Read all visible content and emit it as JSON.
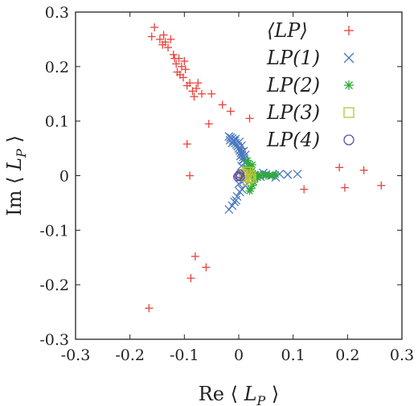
{
  "chart_data": {
    "type": "scatter",
    "xlabel": {
      "prefix": "Re",
      "sym": "L",
      "sub": "P"
    },
    "ylabel": {
      "prefix": "Im",
      "sym": "L",
      "sub": "P"
    },
    "xlim": [
      -0.3,
      0.3
    ],
    "ylim": [
      -0.3,
      0.3
    ],
    "xticks": [
      "-0.3",
      "-0.2",
      "-0.1",
      "0",
      "0.1",
      "0.2",
      "0.3"
    ],
    "yticks": [
      "0.3",
      "0.2",
      "0.1",
      "0",
      "-0.1",
      "-0.2",
      "-0.3"
    ],
    "legend_position": "top-right",
    "series": [
      {
        "name": "⟨LP⟩",
        "marker": "plus",
        "color": "#e8423a",
        "points": [
          [
            -0.16,
            0.255
          ],
          [
            -0.155,
            0.272
          ],
          [
            -0.145,
            0.25
          ],
          [
            -0.14,
            0.24
          ],
          [
            -0.138,
            0.258
          ],
          [
            -0.135,
            0.245
          ],
          [
            -0.13,
            0.235
          ],
          [
            -0.125,
            0.25
          ],
          [
            -0.12,
            0.222
          ],
          [
            -0.118,
            0.215
          ],
          [
            -0.115,
            0.205
          ],
          [
            -0.113,
            0.19
          ],
          [
            -0.11,
            0.215
          ],
          [
            -0.108,
            0.185
          ],
          [
            -0.105,
            0.2
          ],
          [
            -0.102,
            0.18
          ],
          [
            -0.1,
            0.21
          ],
          [
            -0.098,
            0.195
          ],
          [
            -0.095,
            0.165
          ],
          [
            -0.09,
            0.17
          ],
          [
            -0.085,
            0.155
          ],
          [
            -0.082,
            0.145
          ],
          [
            -0.078,
            0.16
          ],
          [
            -0.075,
            0.17
          ],
          [
            -0.068,
            0.15
          ],
          [
            -0.05,
            0.15
          ],
          [
            -0.03,
            0.13
          ],
          [
            -0.015,
            0.118
          ],
          [
            0.02,
            0.105
          ],
          [
            -0.055,
            0.095
          ],
          [
            -0.095,
            0.058
          ],
          [
            -0.09,
            0.0
          ],
          [
            -0.08,
            -0.148
          ],
          [
            -0.06,
            -0.168
          ],
          [
            -0.088,
            -0.188
          ],
          [
            -0.165,
            -0.243
          ],
          [
            0.12,
            -0.025
          ],
          [
            0.185,
            0.015
          ],
          [
            0.195,
            -0.022
          ],
          [
            0.23,
            0.01
          ],
          [
            0.262,
            -0.018
          ],
          [
            0.005,
            0.05
          ]
        ]
      },
      {
        "name": "LP(1)",
        "marker": "x",
        "color": "#4a78c0",
        "points": [
          [
            -0.018,
            0.072
          ],
          [
            -0.015,
            0.07
          ],
          [
            -0.012,
            0.068
          ],
          [
            -0.01,
            0.065
          ],
          [
            -0.008,
            0.063
          ],
          [
            -0.006,
            0.06
          ],
          [
            -0.004,
            0.057
          ],
          [
            -0.002,
            0.054
          ],
          [
            0.0,
            0.05
          ],
          [
            0.002,
            0.046
          ],
          [
            0.004,
            0.042
          ],
          [
            0.006,
            0.038
          ],
          [
            0.008,
            0.034
          ],
          [
            0.01,
            0.03
          ],
          [
            0.012,
            0.025
          ],
          [
            -0.012,
            0.06
          ],
          [
            -0.006,
            0.067
          ],
          [
            0.001,
            0.062
          ],
          [
            0.005,
            0.055
          ],
          [
            0.009,
            0.045
          ],
          [
            0.012,
            0.038
          ],
          [
            -0.016,
            0.065
          ],
          [
            0.003,
            0.036
          ],
          [
            0.007,
            0.028
          ],
          [
            0.03,
            0.0
          ],
          [
            0.04,
            -0.002
          ],
          [
            0.05,
            0.002
          ],
          [
            0.06,
            0.0
          ],
          [
            0.075,
            0.003
          ],
          [
            0.09,
            0.002
          ],
          [
            0.108,
            0.003
          ],
          [
            0.045,
            0.005
          ],
          [
            0.068,
            -0.003
          ],
          [
            0.012,
            -0.018
          ],
          [
            0.006,
            -0.025
          ],
          [
            0.002,
            -0.03
          ],
          [
            -0.003,
            -0.038
          ],
          [
            -0.008,
            -0.048
          ],
          [
            -0.012,
            -0.055
          ],
          [
            -0.018,
            -0.062
          ],
          [
            0.0,
            -0.015
          ],
          [
            -0.005,
            -0.045
          ],
          [
            0.005,
            0.018
          ],
          [
            0.015,
            0.012
          ],
          [
            0.02,
            0.005
          ],
          [
            0.01,
            -0.008
          ]
        ]
      },
      {
        "name": "LP(2)",
        "marker": "asterisk",
        "color": "#2faa3a",
        "points": [
          [
            0.016,
            0.028
          ],
          [
            0.018,
            0.022
          ],
          [
            0.02,
            0.016
          ],
          [
            0.022,
            0.012
          ],
          [
            0.024,
            0.008
          ],
          [
            0.026,
            0.004
          ],
          [
            0.028,
            0.0
          ],
          [
            0.03,
            0.003
          ],
          [
            0.035,
            0.001
          ],
          [
            0.04,
            0.0
          ],
          [
            0.045,
            0.002
          ],
          [
            0.05,
            0.0
          ],
          [
            0.056,
            0.001
          ],
          [
            0.062,
            0.0
          ],
          [
            0.068,
            0.002
          ],
          [
            0.03,
            -0.005
          ],
          [
            0.028,
            -0.012
          ],
          [
            0.025,
            -0.018
          ],
          [
            0.022,
            -0.024
          ],
          [
            0.02,
            -0.028
          ],
          [
            0.035,
            -0.004
          ],
          [
            0.015,
            0.015
          ],
          [
            0.02,
            0.005
          ],
          [
            0.025,
            0.02
          ]
        ]
      },
      {
        "name": "LP(3)",
        "marker": "square",
        "color": "#b8c43a",
        "points": [
          [
            0.008,
            0.004
          ],
          [
            0.012,
            -0.003
          ],
          [
            0.015,
            0.003
          ],
          [
            0.018,
            0.008
          ],
          [
            0.02,
            -0.006
          ],
          [
            0.016,
            -0.01
          ],
          [
            0.022,
            0.0
          ],
          [
            0.01,
            0.0
          ],
          [
            0.014,
            0.008
          ],
          [
            0.024,
            -0.004
          ]
        ]
      },
      {
        "name": "LP(4)",
        "marker": "circle",
        "color": "#5a4ea8",
        "points": [
          [
            0.0,
            0.0
          ],
          [
            0.002,
            0.003
          ],
          [
            -0.002,
            -0.002
          ],
          [
            0.003,
            -0.002
          ]
        ]
      }
    ]
  }
}
